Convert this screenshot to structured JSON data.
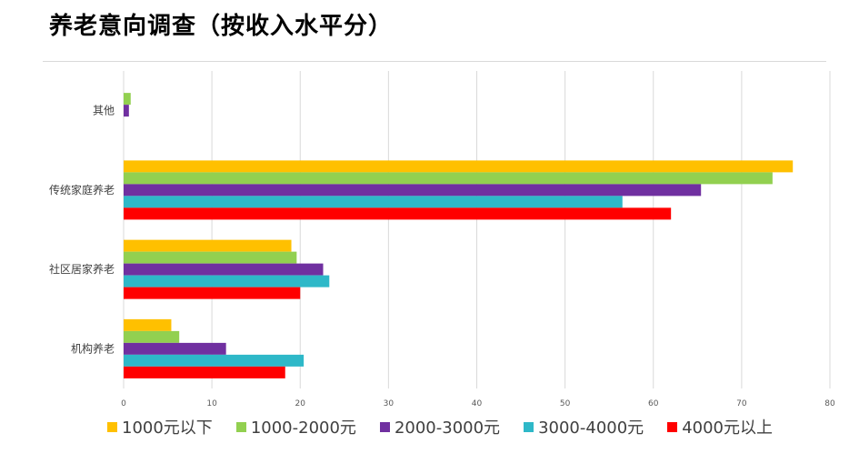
{
  "header": {
    "title": "养老意向调查（按收入水平分）"
  },
  "chart_data": {
    "type": "bar",
    "orientation": "horizontal",
    "title": "养老意向调查（按收入水平分）",
    "categories": [
      "其他",
      "传统家庭养老",
      "社区居家养老",
      "机构养老"
    ],
    "xlim": [
      0,
      80
    ],
    "xticks": [
      0,
      10,
      20,
      30,
      40,
      50,
      60,
      70,
      80
    ],
    "grid": true,
    "legend_position": "bottom",
    "series": [
      {
        "name": "1000元以下",
        "color": "#FFC000",
        "values": [
          0,
          75.8,
          19,
          5.4
        ]
      },
      {
        "name": "1000-2000元",
        "color": "#92D050",
        "values": [
          0.8,
          73.5,
          19.6,
          6.3
        ]
      },
      {
        "name": "2000-3000元",
        "color": "#7030A0",
        "values": [
          0.6,
          65.4,
          22.6,
          11.6
        ]
      },
      {
        "name": "3000-4000元",
        "color": "#2EB8C8",
        "values": [
          0,
          56.5,
          23.3,
          20.4
        ]
      },
      {
        "name": "4000元以上",
        "color": "#FF0000",
        "values": [
          0,
          62,
          20,
          18.3
        ]
      }
    ]
  }
}
